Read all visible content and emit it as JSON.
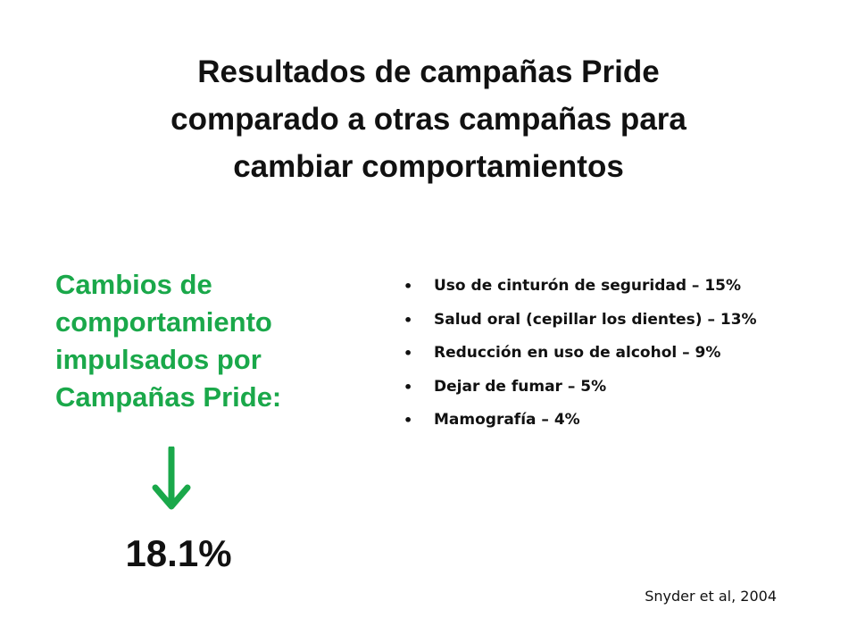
{
  "slide": {
    "title_lines": [
      "Resultados de campañas Pride",
      "comparado a otras campañas para",
      "cambiar comportamientos"
    ],
    "subheading_lines": [
      "Cambios de",
      "comportamiento",
      "impulsados por",
      "Campañas Pride:"
    ],
    "arrow_icon": "down-arrow-icon",
    "result_value": "18.1%",
    "bullets": [
      "Uso de cinturón de seguridad – 15%",
      "Salud oral (cepillar los dientes) – 13%",
      "Reducción en uso de alcohol – 9%",
      "Dejar de fumar – 5%",
      "Mamografía – 4%"
    ],
    "bullet_glyph": "•",
    "citation": "Snyder et al, 2004",
    "colors": {
      "accent_green": "#1aa84a",
      "text": "#111111",
      "background": "#ffffff"
    }
  }
}
